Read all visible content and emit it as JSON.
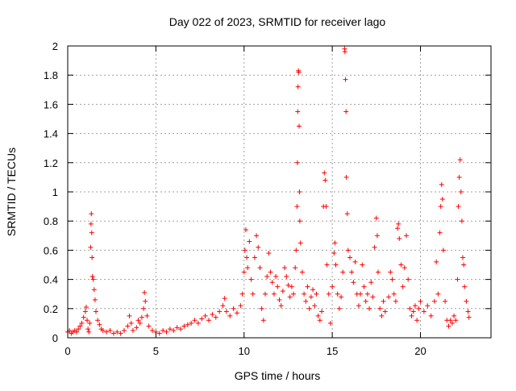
{
  "chart_data": {
    "type": "scatter",
    "title": "Day 022 of 2023, SRMTID for receiver lago",
    "xlabel": "GPS time / hours",
    "ylabel": "SRMTID / TECUs",
    "xlim": [
      0,
      24
    ],
    "ylim": [
      0,
      2
    ],
    "x_ticks": [
      0,
      5,
      10,
      15,
      20
    ],
    "y_ticks": [
      0,
      0.2,
      0.4,
      0.6,
      0.8,
      1,
      1.2,
      1.4,
      1.6,
      1.8,
      2
    ],
    "x_tick_labels": [
      "0",
      "5",
      "10",
      "15",
      "20"
    ],
    "y_tick_labels": [
      "0",
      "0.2",
      "0.4",
      "0.6",
      "0.8",
      "1",
      "1.2",
      "1.4",
      "1.6",
      "1.8",
      "2"
    ],
    "grid": true,
    "marker": "+",
    "color": "#ff0000",
    "series": [
      {
        "name": "SRMTID",
        "points": [
          [
            0.0,
            0.04
          ],
          [
            0.1,
            0.05
          ],
          [
            0.2,
            0.03
          ],
          [
            0.3,
            0.04
          ],
          [
            0.4,
            0.05
          ],
          [
            0.5,
            0.04
          ],
          [
            0.6,
            0.06
          ],
          [
            0.7,
            0.08
          ],
          [
            0.8,
            0.1
          ],
          [
            0.9,
            0.14
          ],
          [
            1.0,
            0.18
          ],
          [
            1.05,
            0.21
          ],
          [
            1.1,
            0.12
          ],
          [
            1.15,
            0.06
          ],
          [
            1.2,
            0.04
          ],
          [
            1.25,
            0.1
          ],
          [
            1.3,
            0.62
          ],
          [
            1.32,
            0.78
          ],
          [
            1.34,
            0.85
          ],
          [
            1.36,
            0.72
          ],
          [
            1.38,
            0.55
          ],
          [
            1.4,
            0.42
          ],
          [
            1.45,
            0.4
          ],
          [
            1.5,
            0.33
          ],
          [
            1.55,
            0.26
          ],
          [
            1.6,
            0.18
          ],
          [
            1.7,
            0.12
          ],
          [
            1.8,
            0.09
          ],
          [
            1.9,
            0.06
          ],
          [
            2.0,
            0.05
          ],
          [
            2.2,
            0.04
          ],
          [
            2.4,
            0.05
          ],
          [
            2.6,
            0.03
          ],
          [
            2.8,
            0.04
          ],
          [
            3.0,
            0.03
          ],
          [
            3.2,
            0.05
          ],
          [
            3.4,
            0.08
          ],
          [
            3.5,
            0.15
          ],
          [
            3.6,
            0.1
          ],
          [
            3.7,
            0.05
          ],
          [
            3.9,
            0.07
          ],
          [
            4.0,
            0.12
          ],
          [
            4.1,
            0.1
          ],
          [
            4.2,
            0.14
          ],
          [
            4.3,
            0.2
          ],
          [
            4.35,
            0.31
          ],
          [
            4.4,
            0.25
          ],
          [
            4.5,
            0.15
          ],
          [
            4.6,
            0.08
          ],
          [
            4.8,
            0.05
          ],
          [
            5.0,
            0.04
          ],
          [
            5.2,
            0.03
          ],
          [
            5.4,
            0.05
          ],
          [
            5.6,
            0.04
          ],
          [
            5.8,
            0.06
          ],
          [
            6.0,
            0.05
          ],
          [
            6.2,
            0.07
          ],
          [
            6.4,
            0.06
          ],
          [
            6.6,
            0.08
          ],
          [
            6.8,
            0.09
          ],
          [
            7.0,
            0.1
          ],
          [
            7.2,
            0.12
          ],
          [
            7.4,
            0.1
          ],
          [
            7.6,
            0.13
          ],
          [
            7.8,
            0.15
          ],
          [
            8.0,
            0.12
          ],
          [
            8.2,
            0.16
          ],
          [
            8.4,
            0.14
          ],
          [
            8.6,
            0.18
          ],
          [
            8.8,
            0.22
          ],
          [
            8.9,
            0.27
          ],
          [
            9.0,
            0.18
          ],
          [
            9.2,
            0.15
          ],
          [
            9.4,
            0.2
          ],
          [
            9.6,
            0.17
          ],
          [
            9.8,
            0.22
          ],
          [
            9.9,
            0.3
          ],
          [
            10.0,
            0.45
          ],
          [
            10.05,
            0.6
          ],
          [
            10.1,
            0.74
          ],
          [
            10.15,
            0.55
          ],
          [
            10.2,
            0.48
          ],
          [
            10.3,
            0.66
          ],
          [
            10.4,
            0.4
          ],
          [
            10.5,
            0.3
          ],
          [
            10.6,
            0.55
          ],
          [
            10.7,
            0.7
          ],
          [
            10.8,
            0.62
          ],
          [
            10.9,
            0.48
          ],
          [
            11.0,
            0.2
          ],
          [
            11.1,
            0.12
          ],
          [
            11.2,
            0.3
          ],
          [
            11.3,
            0.42
          ],
          [
            11.4,
            0.58
          ],
          [
            11.5,
            0.45
          ],
          [
            11.6,
            0.38
          ],
          [
            11.7,
            0.3
          ],
          [
            11.8,
            0.42
          ],
          [
            11.9,
            0.35
          ],
          [
            12.0,
            0.26
          ],
          [
            12.1,
            0.22
          ],
          [
            12.2,
            0.32
          ],
          [
            12.3,
            0.48
          ],
          [
            12.4,
            0.42
          ],
          [
            12.5,
            0.36
          ],
          [
            12.6,
            0.28
          ],
          [
            12.7,
            0.35
          ],
          [
            12.8,
            0.3
          ],
          [
            12.9,
            0.48
          ],
          [
            12.95,
            0.6
          ],
          [
            13.0,
            0.9
          ],
          [
            13.02,
            1.2
          ],
          [
            13.04,
            1.55
          ],
          [
            13.06,
            1.72
          ],
          [
            13.08,
            1.83
          ],
          [
            13.1,
            1.82
          ],
          [
            13.12,
            1.45
          ],
          [
            13.14,
            1.0
          ],
          [
            13.16,
            0.8
          ],
          [
            13.2,
            0.65
          ],
          [
            13.3,
            0.45
          ],
          [
            13.4,
            0.3
          ],
          [
            13.5,
            0.25
          ],
          [
            13.6,
            0.35
          ],
          [
            13.7,
            0.2
          ],
          [
            13.8,
            0.28
          ],
          [
            13.9,
            0.33
          ],
          [
            14.0,
            0.22
          ],
          [
            14.1,
            0.3
          ],
          [
            14.2,
            0.15
          ],
          [
            14.3,
            0.12
          ],
          [
            14.4,
            0.18
          ],
          [
            14.5,
            0.9
          ],
          [
            14.55,
            1.13
          ],
          [
            14.6,
            1.08
          ],
          [
            14.65,
            0.9
          ],
          [
            14.7,
            0.5
          ],
          [
            14.8,
            0.3
          ],
          [
            14.9,
            0.1
          ],
          [
            15.0,
            0.35
          ],
          [
            15.1,
            0.58
          ],
          [
            15.15,
            0.65
          ],
          [
            15.2,
            0.5
          ],
          [
            15.3,
            0.3
          ],
          [
            15.4,
            0.2
          ],
          [
            15.5,
            0.28
          ],
          [
            15.6,
            0.45
          ],
          [
            15.7,
            1.98
          ],
          [
            15.72,
            1.96
          ],
          [
            15.75,
            1.77
          ],
          [
            15.78,
            1.55
          ],
          [
            15.8,
            1.1
          ],
          [
            15.85,
            0.85
          ],
          [
            15.9,
            0.6
          ],
          [
            16.0,
            0.55
          ],
          [
            16.1,
            0.45
          ],
          [
            16.2,
            0.38
          ],
          [
            16.3,
            0.52
          ],
          [
            16.4,
            0.3
          ],
          [
            16.5,
            0.22
          ],
          [
            16.6,
            0.3
          ],
          [
            16.7,
            0.5
          ],
          [
            16.8,
            0.35
          ],
          [
            16.9,
            0.25
          ],
          [
            17.0,
            0.3
          ],
          [
            17.1,
            0.2
          ],
          [
            17.2,
            0.38
          ],
          [
            17.3,
            0.28
          ],
          [
            17.4,
            0.62
          ],
          [
            17.5,
            0.82
          ],
          [
            17.55,
            0.7
          ],
          [
            17.6,
            0.45
          ],
          [
            17.7,
            0.2
          ],
          [
            17.8,
            0.15
          ],
          [
            17.9,
            0.25
          ],
          [
            18.0,
            0.18
          ],
          [
            18.2,
            0.28
          ],
          [
            18.3,
            0.45
          ],
          [
            18.4,
            0.4
          ],
          [
            18.5,
            0.3
          ],
          [
            18.6,
            0.25
          ],
          [
            18.7,
            0.75
          ],
          [
            18.75,
            0.78
          ],
          [
            18.8,
            0.68
          ],
          [
            18.9,
            0.5
          ],
          [
            19.0,
            0.35
          ],
          [
            19.1,
            0.48
          ],
          [
            19.2,
            0.7
          ],
          [
            19.3,
            0.4
          ],
          [
            19.4,
            0.2
          ],
          [
            19.5,
            0.15
          ],
          [
            19.6,
            0.18
          ],
          [
            19.7,
            0.22
          ],
          [
            19.8,
            0.12
          ],
          [
            19.9,
            0.2
          ],
          [
            20.0,
            0.25
          ],
          [
            20.2,
            0.18
          ],
          [
            20.4,
            0.22
          ],
          [
            20.6,
            0.15
          ],
          [
            20.8,
            0.25
          ],
          [
            20.9,
            0.52
          ],
          [
            21.0,
            0.3
          ],
          [
            21.1,
            0.72
          ],
          [
            21.15,
            0.9
          ],
          [
            21.2,
            1.05
          ],
          [
            21.25,
            0.95
          ],
          [
            21.3,
            0.6
          ],
          [
            21.4,
            0.25
          ],
          [
            21.5,
            0.12
          ],
          [
            21.6,
            0.08
          ],
          [
            21.7,
            0.12
          ],
          [
            21.8,
            0.1
          ],
          [
            21.9,
            0.15
          ],
          [
            22.0,
            0.12
          ],
          [
            22.1,
            0.4
          ],
          [
            22.15,
            0.9
          ],
          [
            22.2,
            1.1
          ],
          [
            22.25,
            1.22
          ],
          [
            22.3,
            1.0
          ],
          [
            22.35,
            0.8
          ],
          [
            22.4,
            0.55
          ],
          [
            22.45,
            0.5
          ],
          [
            22.5,
            0.35
          ],
          [
            22.6,
            0.25
          ],
          [
            22.7,
            0.18
          ],
          [
            22.75,
            0.14
          ]
        ]
      }
    ]
  }
}
